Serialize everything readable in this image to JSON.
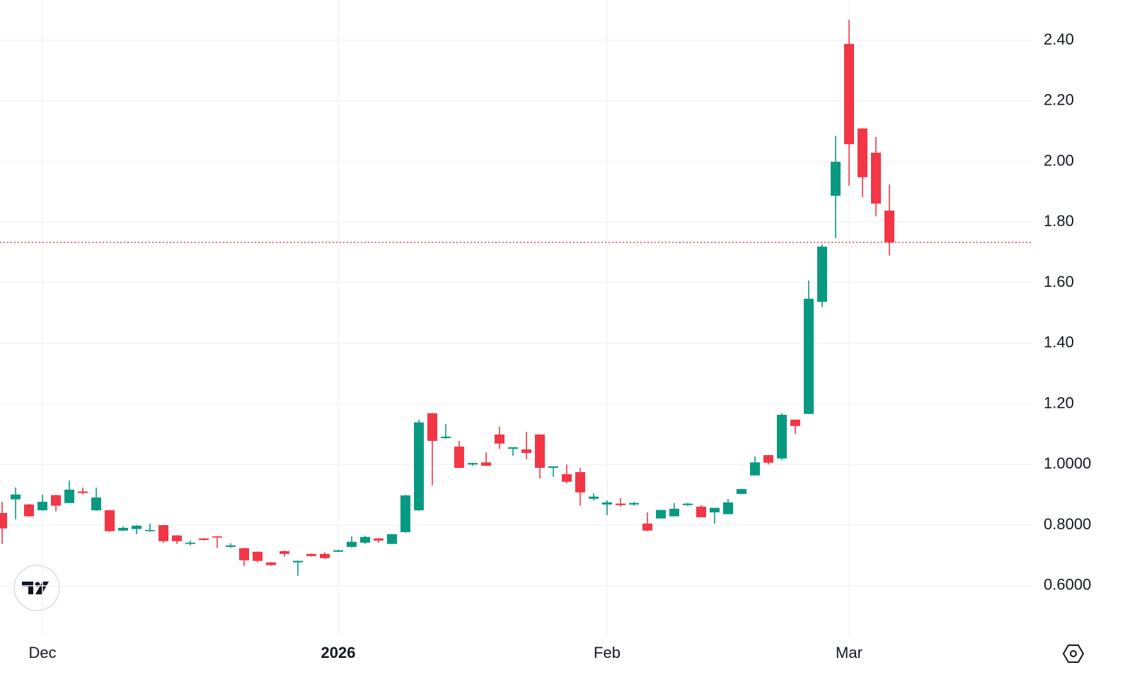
{
  "chart_data": {
    "type": "candlestick",
    "categories": [
      null,
      null,
      null,
      "Dec",
      null,
      null,
      null,
      null,
      null,
      null,
      null,
      null,
      null,
      null,
      null,
      null,
      null,
      null,
      null,
      null,
      null,
      null,
      null,
      null,
      null,
      "2026",
      null,
      null,
      null,
      null,
      null,
      null,
      null,
      null,
      null,
      null,
      null,
      null,
      null,
      null,
      null,
      null,
      null,
      null,
      null,
      "Feb",
      null,
      null,
      null,
      null,
      null,
      null,
      null,
      null,
      null,
      null,
      null,
      null,
      null,
      null,
      null,
      null,
      null,
      "Mar",
      null,
      null,
      null
    ],
    "open": [
      0.84,
      0.885,
      0.868,
      0.849,
      0.899,
      0.873,
      0.911,
      0.849,
      0.849,
      0.782,
      0.787,
      0.78,
      0.8,
      0.766,
      0.738,
      0.756,
      0.763,
      0.728,
      0.724,
      0.712,
      0.677,
      0.714,
      0.677,
      0.705,
      0.705,
      0.712,
      0.728,
      0.742,
      0.756,
      0.738,
      0.777,
      0.849,
      1.169,
      1.087,
      1.059,
      1.0,
      1.007,
      1.099,
      1.052,
      1.05,
      1.099,
      0.989,
      0.968,
      0.975,
      0.887,
      0.868,
      0.871,
      0.868,
      0.805,
      0.822,
      0.829,
      0.866,
      0.861,
      0.842,
      0.836,
      0.903,
      0.964,
      1.031,
      1.02,
      1.148,
      1.167,
      1.537,
      1.887,
      2.388,
      2.109,
      2.029,
      1.838
    ],
    "high": [
      0.877,
      0.924,
      0.87,
      0.901,
      0.9,
      0.947,
      0.924,
      0.924,
      0.85,
      0.796,
      0.8,
      0.805,
      0.8,
      0.767,
      0.749,
      0.757,
      0.764,
      0.74,
      0.725,
      0.713,
      0.678,
      0.716,
      0.683,
      0.706,
      0.71,
      0.719,
      0.763,
      0.765,
      0.757,
      0.771,
      0.9,
      1.148,
      1.17,
      1.134,
      1.078,
      1.006,
      1.04,
      1.125,
      1.057,
      1.108,
      1.1,
      0.994,
      1.0,
      0.989,
      0.905,
      0.882,
      0.889,
      0.877,
      0.842,
      0.85,
      0.873,
      0.873,
      0.866,
      0.857,
      0.887,
      0.92,
      1.027,
      1.032,
      1.169,
      1.149,
      1.607,
      1.726,
      2.085,
      2.468,
      2.11,
      2.081,
      1.924
    ],
    "low": [
      0.738,
      0.819,
      0.827,
      0.847,
      0.845,
      0.872,
      0.901,
      0.847,
      0.778,
      0.78,
      0.77,
      0.778,
      0.742,
      0.738,
      0.733,
      0.749,
      0.724,
      0.726,
      0.665,
      0.677,
      0.665,
      0.696,
      0.633,
      0.696,
      0.689,
      0.712,
      0.726,
      0.738,
      0.742,
      0.737,
      0.775,
      0.847,
      0.931,
      1.085,
      0.988,
      0.996,
      0.995,
      1.052,
      1.029,
      1.017,
      0.954,
      0.959,
      0.938,
      0.864,
      0.882,
      0.833,
      0.861,
      0.864,
      0.78,
      0.822,
      0.829,
      0.864,
      0.826,
      0.805,
      0.836,
      0.902,
      0.964,
      1.0,
      1.015,
      1.101,
      1.166,
      1.519,
      1.747,
      1.92,
      1.882,
      1.819,
      1.689
    ],
    "close": [
      0.789,
      0.901,
      0.829,
      0.877,
      0.864,
      0.917,
      0.906,
      0.891,
      0.78,
      0.791,
      0.798,
      0.784,
      0.747,
      0.747,
      0.742,
      0.751,
      0.759,
      0.733,
      0.684,
      0.682,
      0.668,
      0.705,
      0.682,
      0.698,
      0.691,
      0.717,
      0.745,
      0.761,
      0.749,
      0.77,
      0.898,
      1.139,
      1.078,
      1.092,
      0.989,
      1.005,
      0.996,
      1.069,
      1.057,
      1.038,
      0.989,
      0.994,
      0.943,
      0.908,
      0.894,
      0.875,
      0.866,
      0.873,
      0.782,
      0.85,
      0.854,
      0.871,
      0.826,
      0.857,
      0.875,
      0.919,
      1.007,
      1.006,
      1.164,
      1.127,
      1.547,
      1.719,
      1.999,
      2.057,
      1.948,
      1.861,
      1.733
    ],
    "up_color": "#089981",
    "down_color": "#f23645",
    "ylim": [
      0.434,
      2.533
    ],
    "yticks": [
      {
        "value": 0.6,
        "label": "0.6000"
      },
      {
        "value": 0.8,
        "label": "0.8000"
      },
      {
        "value": 1.0,
        "label": "1.0000"
      },
      {
        "value": 1.2,
        "label": "1.20"
      },
      {
        "value": 1.4,
        "label": "1.40"
      },
      {
        "value": 1.6,
        "label": "1.60"
      },
      {
        "value": 1.8,
        "label": "1.80"
      },
      {
        "value": 2.0,
        "label": "2.00"
      },
      {
        "value": 2.2,
        "label": "2.20"
      },
      {
        "value": 2.4,
        "label": "2.40"
      }
    ],
    "grid": true
  }
}
